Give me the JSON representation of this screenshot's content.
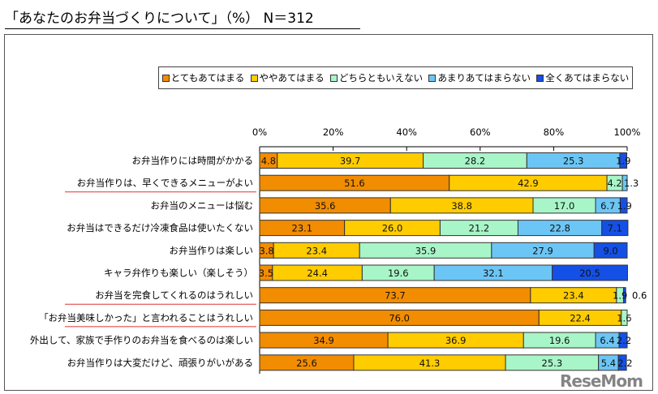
{
  "title": "「あなたのお弁当づくりについて」（%） N＝312",
  "watermark": "ReseMom",
  "chart_data": {
    "type": "bar",
    "orientation": "horizontal-stacked",
    "xlim": [
      0,
      100
    ],
    "xticks": [
      "0%",
      "20%",
      "40%",
      "60%",
      "80%",
      "100%"
    ],
    "legend_position": "top",
    "categories": [
      "お弁当作りには時間がかかる",
      "お弁当作りは、早くできるメニューがよい",
      "お弁当のメニューは悩む",
      "お弁当はできるだけ冷凍食品は使いたくない",
      "お弁当作りは楽しい",
      "キャラ弁作りも楽しい（楽しそう）",
      "お弁当を完食してくれるのはうれしい",
      "「お弁当美味しかった」と言われることはうれしい",
      "外出して、家族で手作りのお弁当を食べるのは楽しい",
      "お弁当作りは大変だけど、頑張りがいがある"
    ],
    "highlighted": [
      1,
      6,
      7
    ],
    "series": [
      {
        "name": "とてもあてはまる",
        "color": "#F28C00",
        "values": [
          4.8,
          51.6,
          35.6,
          23.1,
          3.8,
          3.5,
          73.7,
          76.0,
          34.9,
          25.6
        ]
      },
      {
        "name": "ややあてはまる",
        "color": "#FFCC00",
        "values": [
          39.7,
          42.9,
          38.8,
          26.0,
          23.4,
          24.4,
          23.4,
          22.4,
          36.9,
          41.3
        ]
      },
      {
        "name": "どちらともいえない",
        "color": "#A8F5C8",
        "values": [
          28.2,
          4.2,
          17.0,
          21.2,
          35.9,
          19.6,
          1.9,
          1.6,
          19.6,
          25.3
        ]
      },
      {
        "name": "あまりあてはまらない",
        "color": "#6CC6F5",
        "values": [
          25.3,
          1.3,
          6.7,
          22.8,
          27.9,
          32.1,
          0,
          0,
          6.4,
          5.4
        ]
      },
      {
        "name": "全くあてはまらない",
        "color": "#1450E6",
        "values": [
          1.9,
          0,
          1.9,
          7.1,
          9.0,
          20.5,
          0.6,
          0,
          2.2,
          2.2
        ]
      }
    ],
    "outside_labels": [
      {
        "row": 6,
        "text": "0.6"
      }
    ]
  }
}
